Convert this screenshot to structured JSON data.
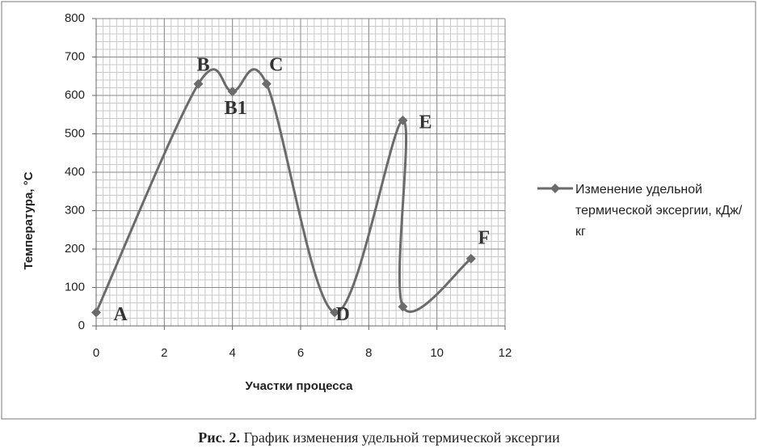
{
  "chart_data": {
    "type": "line",
    "x_label": "Участки процесса",
    "y_label": "Температура, °С",
    "x": [
      0,
      3,
      4,
      5,
      7,
      9,
      9,
      11
    ],
    "series": [
      {
        "name": "Изменение удельной термической эксергии, кДж/кг",
        "color": "#6b6b6b",
        "values": [
          35,
          630,
          610,
          630,
          35,
          535,
          50,
          175
        ],
        "point_labels": [
          "A",
          "B",
          "B1",
          "C",
          "D",
          "E",
          null,
          "F"
        ]
      }
    ],
    "xlim": [
      0,
      12
    ],
    "xticks": [
      0,
      2,
      4,
      6,
      8,
      10,
      12
    ],
    "ylim": [
      0,
      800
    ],
    "yticks": [
      0,
      100,
      200,
      300,
      400,
      500,
      600,
      700,
      800
    ],
    "grid": true,
    "minor_grid": {
      "x": 0.2,
      "y": 20
    },
    "smooth": true,
    "legend": "right"
  },
  "caption": {
    "label": "Рис. 2.",
    "text": "График изменения удельной термической эксергии"
  }
}
